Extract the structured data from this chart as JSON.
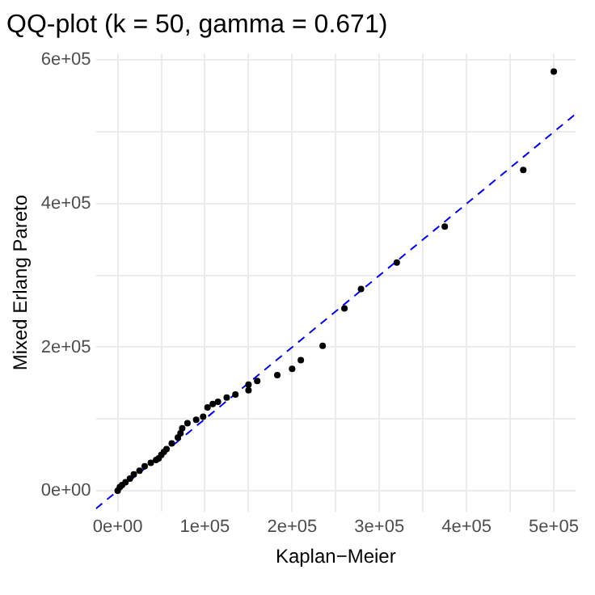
{
  "chart_data": {
    "type": "scatter",
    "title": "QQ-plot (k = 50, gamma = 0.671)",
    "xlabel": "Kaplan−Meier",
    "ylabel": "Mixed Erlang Pareto",
    "xlim": [
      -25000,
      525000
    ],
    "ylim": [
      -29000,
      609000
    ],
    "xticks": [
      {
        "value": 0,
        "label": "0e+00"
      },
      {
        "value": 50000,
        "label": null
      },
      {
        "value": 100000,
        "label": "1e+05"
      },
      {
        "value": 150000,
        "label": null
      },
      {
        "value": 200000,
        "label": "2e+05"
      },
      {
        "value": 250000,
        "label": null
      },
      {
        "value": 300000,
        "label": "3e+05"
      },
      {
        "value": 350000,
        "label": null
      },
      {
        "value": 400000,
        "label": "4e+05"
      },
      {
        "value": 450000,
        "label": null
      },
      {
        "value": 500000,
        "label": "5e+05"
      }
    ],
    "yticks": [
      {
        "value": 0,
        "label": "0e+00"
      },
      {
        "value": 100000,
        "label": null
      },
      {
        "value": 200000,
        "label": "2e+05"
      },
      {
        "value": 300000,
        "label": null
      },
      {
        "value": 400000,
        "label": "4e+05"
      },
      {
        "value": 500000,
        "label": null
      },
      {
        "value": 600000,
        "label": "6e+05"
      }
    ],
    "grid": true,
    "marker": "circle",
    "series": [
      {
        "type": "line",
        "color": "#0000ff",
        "line_style": "dashed",
        "marker": "none",
        "x": [
          -25000,
          525000
        ],
        "values": [
          -25000,
          525000
        ]
      },
      {
        "color": "#000000",
        "x": [
          0,
          2500,
          5000,
          9000,
          14000,
          18500,
          25000,
          31000,
          38000,
          44000,
          47000,
          50000,
          53000,
          56000,
          62000,
          69000,
          72000,
          74000,
          80000,
          90000,
          98000,
          103000,
          109000,
          115000,
          125000,
          135000,
          150000,
          150000,
          160000,
          183000,
          200000,
          210000,
          235000,
          260000,
          279000,
          320000,
          375000,
          465000,
          500000
        ],
        "values": [
          0,
          5000,
          8000,
          12000,
          17000,
          23000,
          28000,
          34000,
          39000,
          43000,
          45000,
          50000,
          54000,
          58000,
          66000,
          74000,
          80000,
          87000,
          94000,
          99000,
          103000,
          116000,
          121000,
          124000,
          130000,
          134000,
          140000,
          148000,
          153000,
          161000,
          170000,
          182000,
          202000,
          254000,
          281000,
          318000,
          368000,
          447000,
          584000
        ]
      }
    ]
  }
}
